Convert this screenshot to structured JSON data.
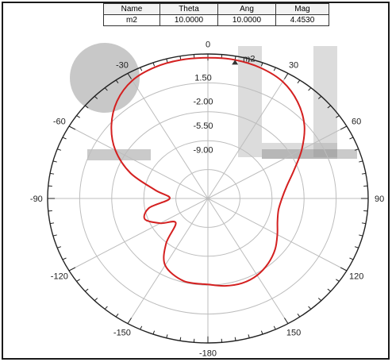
{
  "marker_table": {
    "headers": [
      "Name",
      "Theta",
      "Ang",
      "Mag"
    ],
    "rows": [
      [
        "m2",
        "10.0000",
        "10.0000",
        "4.4530"
      ]
    ]
  },
  "colors": {
    "trace": "#d42020",
    "grid": "#bdbdbd",
    "outer": "#222222",
    "watermark": "#9a9a9a"
  },
  "chart_data": {
    "type": "polar-line",
    "angle_labels": [
      "0",
      "30",
      "60",
      "90",
      "120",
      "150",
      "-180",
      "-150",
      "-120",
      "-90",
      "-60",
      "-30"
    ],
    "radial_labels": [
      "1.50",
      "-2.00",
      "-5.50",
      "-9.00"
    ],
    "radial_range": [
      -16.0,
      5.0
    ],
    "marker": {
      "name": "m2",
      "theta": 10.0,
      "value": 4.453
    },
    "series": [
      {
        "theta": [
          -180,
          -165,
          -150,
          -140,
          -130,
          -120,
          -110,
          -100,
          -90,
          -80,
          -70,
          -60,
          -50,
          -40,
          -30,
          -20,
          -10,
          0,
          10,
          20,
          30,
          40,
          50,
          60,
          70,
          80,
          90,
          100,
          110,
          120,
          130,
          140,
          150,
          160,
          170,
          180
        ],
        "values": [
          -3.5,
          -3.6,
          -4.8,
          -7.5,
          -10.5,
          -8.8,
          -7.2,
          -8.2,
          -11.0,
          -9.0,
          -5.2,
          -2.0,
          0.5,
          2.5,
          3.8,
          4.3,
          4.45,
          4.45,
          4.45,
          4.2,
          3.6,
          2.3,
          0.5,
          -1.8,
          -4.0,
          -5.5,
          -6.3,
          -6.6,
          -6.3,
          -5.5,
          -4.5,
          -3.7,
          -3.1,
          -2.9,
          -3.1,
          -3.5
        ]
      }
    ]
  }
}
